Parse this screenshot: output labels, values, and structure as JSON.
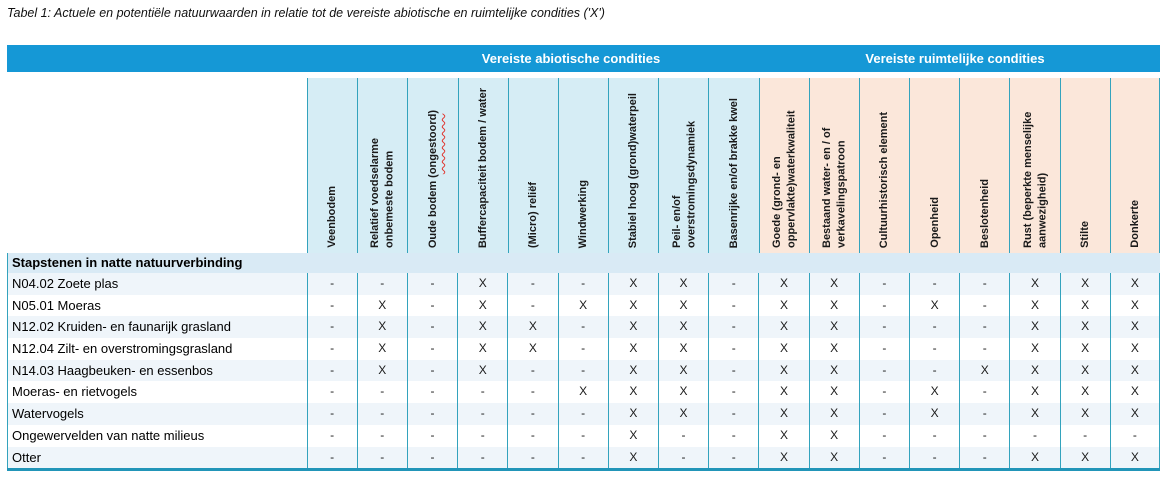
{
  "title": "Tabel 1: Actuele en potentiële natuurwaarden in relatie tot de vereiste abiotische en ruimtelijke condities ('X')",
  "colors": {
    "group_band_blue": "#1598d6",
    "abiotic_column_bg": "#d6edf5",
    "spatial_column_bg": "#fbe7da",
    "grid_line_teal": "#33a3bd",
    "bottom_border_teal": "#2295b8",
    "section_row_bg": "#d9eaf5",
    "row_stripe_bg": "#eff5fa",
    "spellcheck_red": "#e0332c"
  },
  "table": {
    "column_groups": [
      {
        "label": "Vereiste abiotische condities",
        "span": 9
      },
      {
        "label": "Vereiste ruimtelijke condities",
        "span": 8
      }
    ],
    "columns": [
      {
        "label": "Veenbodem",
        "group": "abiotisch"
      },
      {
        "label": "Relatief voedselarme onbemeste bodem",
        "group": "abiotisch"
      },
      {
        "label": "Oude bodem (ongestoord)",
        "group": "abiotisch",
        "squiggle": "ongestoord"
      },
      {
        "label": "Buffercapaciteit bodem / water",
        "group": "abiotisch"
      },
      {
        "label": "(Micro) reliëf",
        "group": "abiotisch"
      },
      {
        "label": "Windwerking",
        "group": "abiotisch"
      },
      {
        "label": "Stabiel hoog (grond)waterpeil",
        "group": "abiotisch"
      },
      {
        "label": "Peil- en/of overstromingsdynamiek",
        "group": "abiotisch"
      },
      {
        "label": "Basenrijke en/of brakke kwel",
        "group": "abiotisch"
      },
      {
        "label": "Goede (grond- en oppervlakte)waterkwaliteit",
        "group": "ruimtelijk"
      },
      {
        "label": "Bestaand water- en / of verkavelingspatroon",
        "group": "ruimtelijk"
      },
      {
        "label": "Cultuurhistorisch element",
        "group": "ruimtelijk"
      },
      {
        "label": "Openheid",
        "group": "ruimtelijk"
      },
      {
        "label": "Beslotenheid",
        "group": "ruimtelijk"
      },
      {
        "label": "Rust (beperkte menselijke aanwezigheid)",
        "group": "ruimtelijk"
      },
      {
        "label": "Stilte",
        "group": "ruimtelijk"
      },
      {
        "label": "Donkerte",
        "group": "ruimtelijk"
      }
    ],
    "section_header": "Stapstenen in natte natuurverbinding",
    "rows": [
      {
        "label": "N04.02 Zoete plas",
        "values": [
          "-",
          "-",
          "-",
          "X",
          "-",
          "-",
          "X",
          "X",
          "-",
          "X",
          "X",
          "-",
          "-",
          "-",
          "X",
          "X",
          "X"
        ]
      },
      {
        "label": "N05.01 Moeras",
        "values": [
          "-",
          "X",
          "-",
          "X",
          "-",
          "X",
          "X",
          "X",
          "-",
          "X",
          "X",
          "-",
          "X",
          "-",
          "X",
          "X",
          "X"
        ]
      },
      {
        "label": "N12.02 Kruiden- en faunarijk grasland",
        "values": [
          "-",
          "X",
          "-",
          "X",
          "X",
          "-",
          "X",
          "X",
          "-",
          "X",
          "X",
          "-",
          "-",
          "-",
          "X",
          "X",
          "X"
        ]
      },
      {
        "label": "N12.04 Zilt- en overstromingsgrasland",
        "values": [
          "-",
          "X",
          "-",
          "X",
          "X",
          "-",
          "X",
          "X",
          "-",
          "X",
          "X",
          "-",
          "-",
          "-",
          "X",
          "X",
          "X"
        ]
      },
      {
        "label": "N14.03 Haagbeuken- en essenbos",
        "values": [
          "-",
          "X",
          "-",
          "X",
          "-",
          "-",
          "X",
          "X",
          "-",
          "X",
          "X",
          "-",
          "-",
          "X",
          "X",
          "X",
          "X"
        ]
      },
      {
        "label": "Moeras- en rietvogels",
        "values": [
          "-",
          "-",
          "-",
          "-",
          "-",
          "X",
          "X",
          "X",
          "-",
          "X",
          "X",
          "-",
          "X",
          "-",
          "X",
          "X",
          "X"
        ]
      },
      {
        "label": "Watervogels",
        "values": [
          "-",
          "-",
          "-",
          "-",
          "-",
          "-",
          "X",
          "X",
          "-",
          "X",
          "X",
          "-",
          "X",
          "-",
          "X",
          "X",
          "X"
        ]
      },
      {
        "label": "Ongewervelden van natte milieus",
        "values": [
          "-",
          "-",
          "-",
          "-",
          "-",
          "-",
          "X",
          "-",
          "-",
          "X",
          "X",
          "-",
          "-",
          "-",
          "-",
          "-",
          "-"
        ]
      },
      {
        "label": "Otter",
        "values": [
          "-",
          "-",
          "-",
          "-",
          "-",
          "-",
          "X",
          "-",
          "-",
          "X",
          "X",
          "-",
          "-",
          "-",
          "X",
          "X",
          "X"
        ]
      }
    ]
  }
}
